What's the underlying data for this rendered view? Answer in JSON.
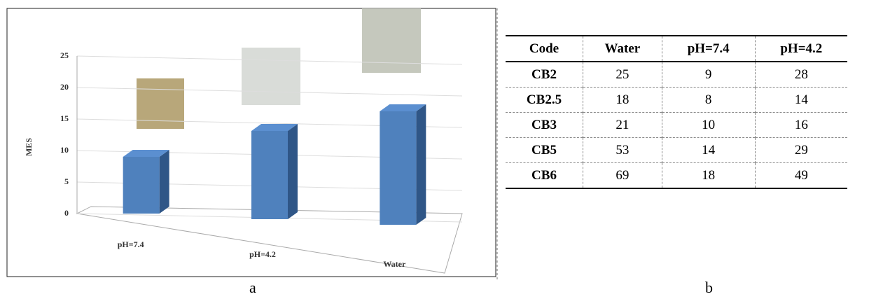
{
  "chart_data": {
    "type": "bar3d",
    "y_label": "MES",
    "categories": [
      "pH=7.4",
      "pH=4.2",
      "Water"
    ],
    "values": [
      9,
      14,
      18
    ],
    "color": "#4f81bd",
    "ylim": [
      0,
      25
    ],
    "yticks": [
      0,
      5,
      10,
      15,
      20,
      25
    ],
    "grid": true
  },
  "table": {
    "header": [
      "Code",
      "Water",
      "pH=7.4",
      "pH=4.2"
    ],
    "rows": [
      [
        "CB2",
        25,
        9,
        28
      ],
      [
        "CB2.5",
        18,
        8,
        14
      ],
      [
        "CB3",
        21,
        10,
        16
      ],
      [
        "CB5",
        53,
        14,
        29
      ],
      [
        "CB6",
        69,
        18,
        49
      ]
    ]
  },
  "captions": [
    "a",
    "b"
  ]
}
